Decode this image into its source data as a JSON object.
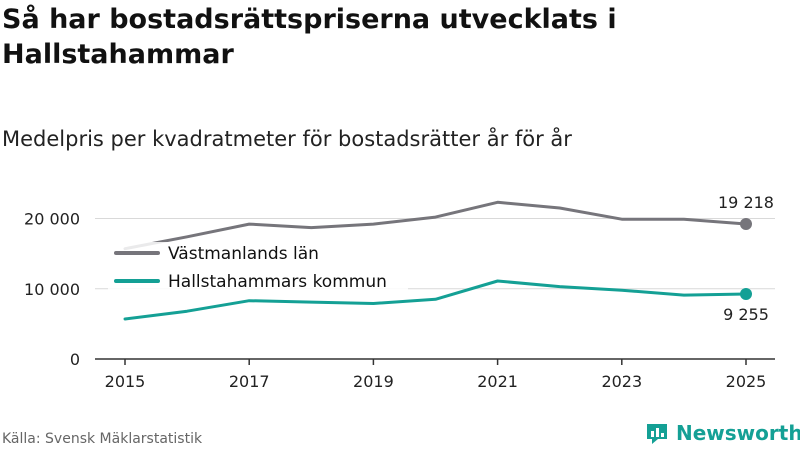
{
  "title": "Så har bostadsrättspriserna utvecklats i Hallstahammar",
  "subtitle": "Medelpris per kvadratmeter för bostadsrätter år för år",
  "source": "Källa: Svensk Mäklarstatistik",
  "brand": "Newsworthy",
  "colors": {
    "regional": "#76757b",
    "municipal": "#14a095",
    "axis": "#333333",
    "grid": "#d9d9d9"
  },
  "chart_data": {
    "type": "line",
    "x": [
      2015,
      2016,
      2017,
      2018,
      2019,
      2020,
      2021,
      2022,
      2023,
      2024,
      2025
    ],
    "xticks": [
      2015,
      2017,
      2019,
      2021,
      2023,
      2025
    ],
    "xtick_labels": [
      "2015",
      "2017",
      "2019",
      "2021",
      "2023",
      "2025"
    ],
    "yticks": [
      0,
      10000,
      20000
    ],
    "ytick_labels": [
      "0",
      "10 000",
      "20 000"
    ],
    "ylim": [
      0,
      25000
    ],
    "series": [
      {
        "name": "Västmanlands län",
        "color": "#76757b",
        "values": [
          15700,
          17400,
          19200,
          18700,
          19200,
          20200,
          22300,
          21500,
          19900,
          19900,
          19218
        ],
        "end_label": "19 218"
      },
      {
        "name": "Hallstahammars kommun",
        "color": "#14a095",
        "values": [
          5700,
          6800,
          8300,
          8100,
          7900,
          8500,
          11100,
          10300,
          9800,
          9100,
          9255
        ],
        "end_label": "9 255"
      }
    ],
    "legend_position": "top-left"
  }
}
